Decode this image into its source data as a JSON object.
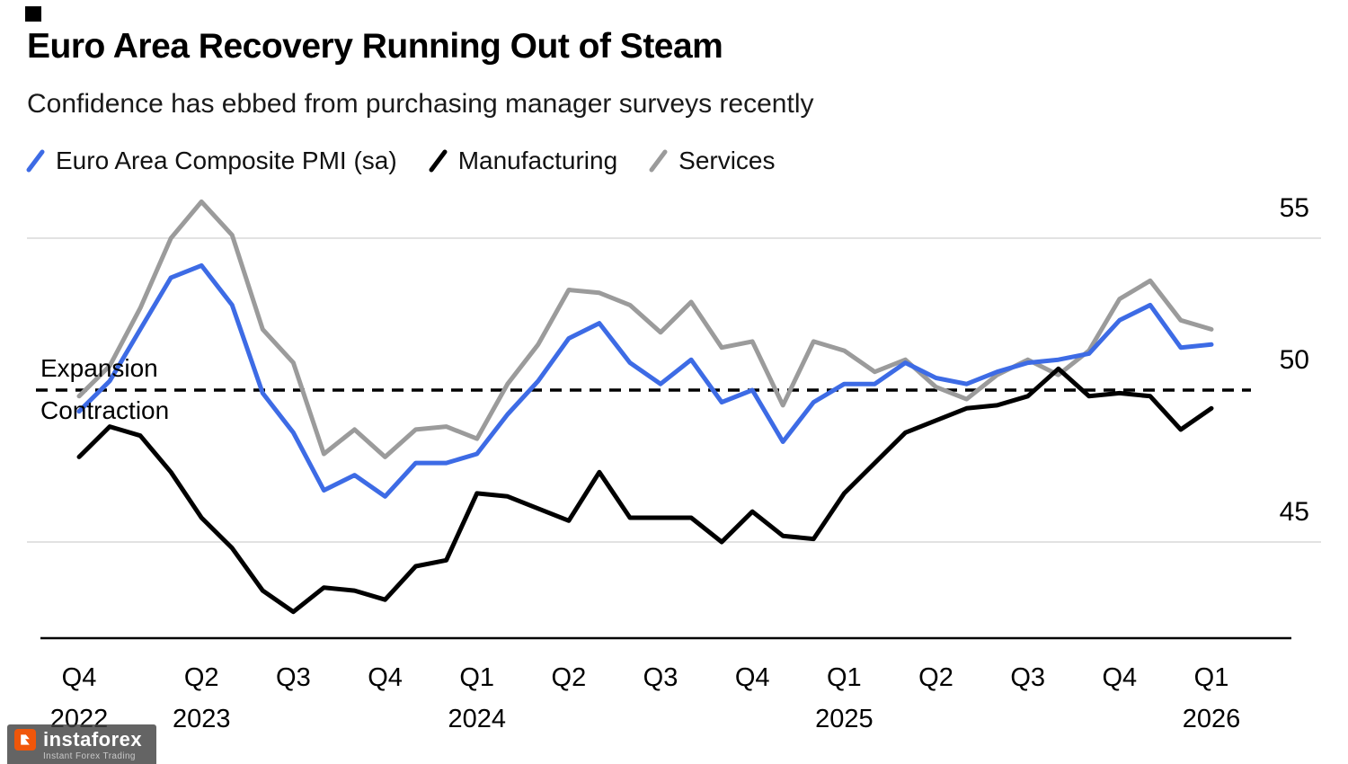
{
  "header": {
    "title": "Euro Area Recovery Running Out of Steam",
    "subtitle": "Confidence has ebbed from purchasing manager surveys recently"
  },
  "annotations": {
    "expansion": "Expansion",
    "contraction": "Contraction"
  },
  "watermark": {
    "name": "instaforex",
    "tagline": "Instant Forex Trading",
    "logo_color": "#f0560a"
  },
  "colors": {
    "composite": "#3d6be5",
    "manufacturing": "#000000",
    "services": "#9b9b9b",
    "gridline": "#e2e2e2"
  },
  "chart_data": {
    "type": "line",
    "title": "Euro Area Recovery Running Out of Steam",
    "subtitle": "Confidence has ebbed from purchasing manager surveys recently",
    "frequency": "monthly",
    "start": "Dec 2022",
    "end": "Jan 2026",
    "ylim": [
      41.8,
      57
    ],
    "grid": "horizontal",
    "legend_position": "top-left",
    "y_axis_side": "right",
    "y_ticks": [
      {
        "value": 55,
        "gridline": true
      },
      {
        "value": 50,
        "gridline": false
      },
      {
        "value": 45,
        "gridline": true
      }
    ],
    "threshold": {
      "value": 50,
      "style": "dashed",
      "label_above": "Expansion",
      "label_below": "Contraction"
    },
    "x_ticks": [
      {
        "label": "Q4",
        "month": 0,
        "year": "2022"
      },
      {
        "label": "Q2",
        "month": 4,
        "year": "2023"
      },
      {
        "label": "Q3",
        "month": 7
      },
      {
        "label": "Q4",
        "month": 10
      },
      {
        "label": "Q1",
        "month": 13,
        "year": "2024"
      },
      {
        "label": "Q2",
        "month": 16
      },
      {
        "label": "Q3",
        "month": 19
      },
      {
        "label": "Q4",
        "month": 22
      },
      {
        "label": "Q1",
        "month": 25,
        "year": "2025"
      },
      {
        "label": "Q2",
        "month": 28
      },
      {
        "label": "Q3",
        "month": 31
      },
      {
        "label": "Q4",
        "month": 34
      },
      {
        "label": "Q1",
        "month": 37,
        "year": "2026"
      }
    ],
    "series": [
      {
        "name": "Euro Area Composite PMI (sa)",
        "color": "#3d6be5",
        "values": [
          49.3,
          50.3,
          52.0,
          53.7,
          54.1,
          52.8,
          49.9,
          48.6,
          46.7,
          47.2,
          46.5,
          47.6,
          47.6,
          47.9,
          49.2,
          50.3,
          51.7,
          52.2,
          50.9,
          50.2,
          51.0,
          49.6,
          50.0,
          48.3,
          49.6,
          50.2,
          50.2,
          50.9,
          50.4,
          50.2,
          50.6,
          50.9,
          51.0,
          51.2,
          52.3,
          52.8,
          51.4,
          51.5
        ]
      },
      {
        "name": "Manufacturing",
        "color": "#000000",
        "values": [
          47.8,
          48.8,
          48.5,
          47.3,
          45.8,
          44.8,
          43.4,
          42.7,
          43.5,
          43.4,
          43.1,
          44.2,
          44.4,
          46.6,
          46.5,
          46.1,
          45.7,
          47.3,
          45.8,
          45.8,
          45.8,
          45.0,
          46.0,
          45.2,
          45.1,
          46.6,
          47.6,
          48.6,
          49.0,
          49.4,
          49.5,
          49.8,
          50.7,
          49.8,
          49.9,
          49.8,
          48.7,
          49.4
        ]
      },
      {
        "name": "Services",
        "color": "#9b9b9b",
        "values": [
          49.8,
          50.8,
          52.7,
          55.0,
          56.2,
          55.1,
          52.0,
          50.9,
          47.9,
          48.7,
          47.8,
          48.7,
          48.8,
          48.4,
          50.2,
          51.5,
          53.3,
          53.2,
          52.8,
          51.9,
          52.9,
          51.4,
          51.6,
          49.5,
          51.6,
          51.3,
          50.6,
          51.0,
          50.1,
          49.7,
          50.5,
          51.0,
          50.5,
          51.3,
          53.0,
          53.6,
          52.3,
          52.0
        ]
      }
    ]
  }
}
